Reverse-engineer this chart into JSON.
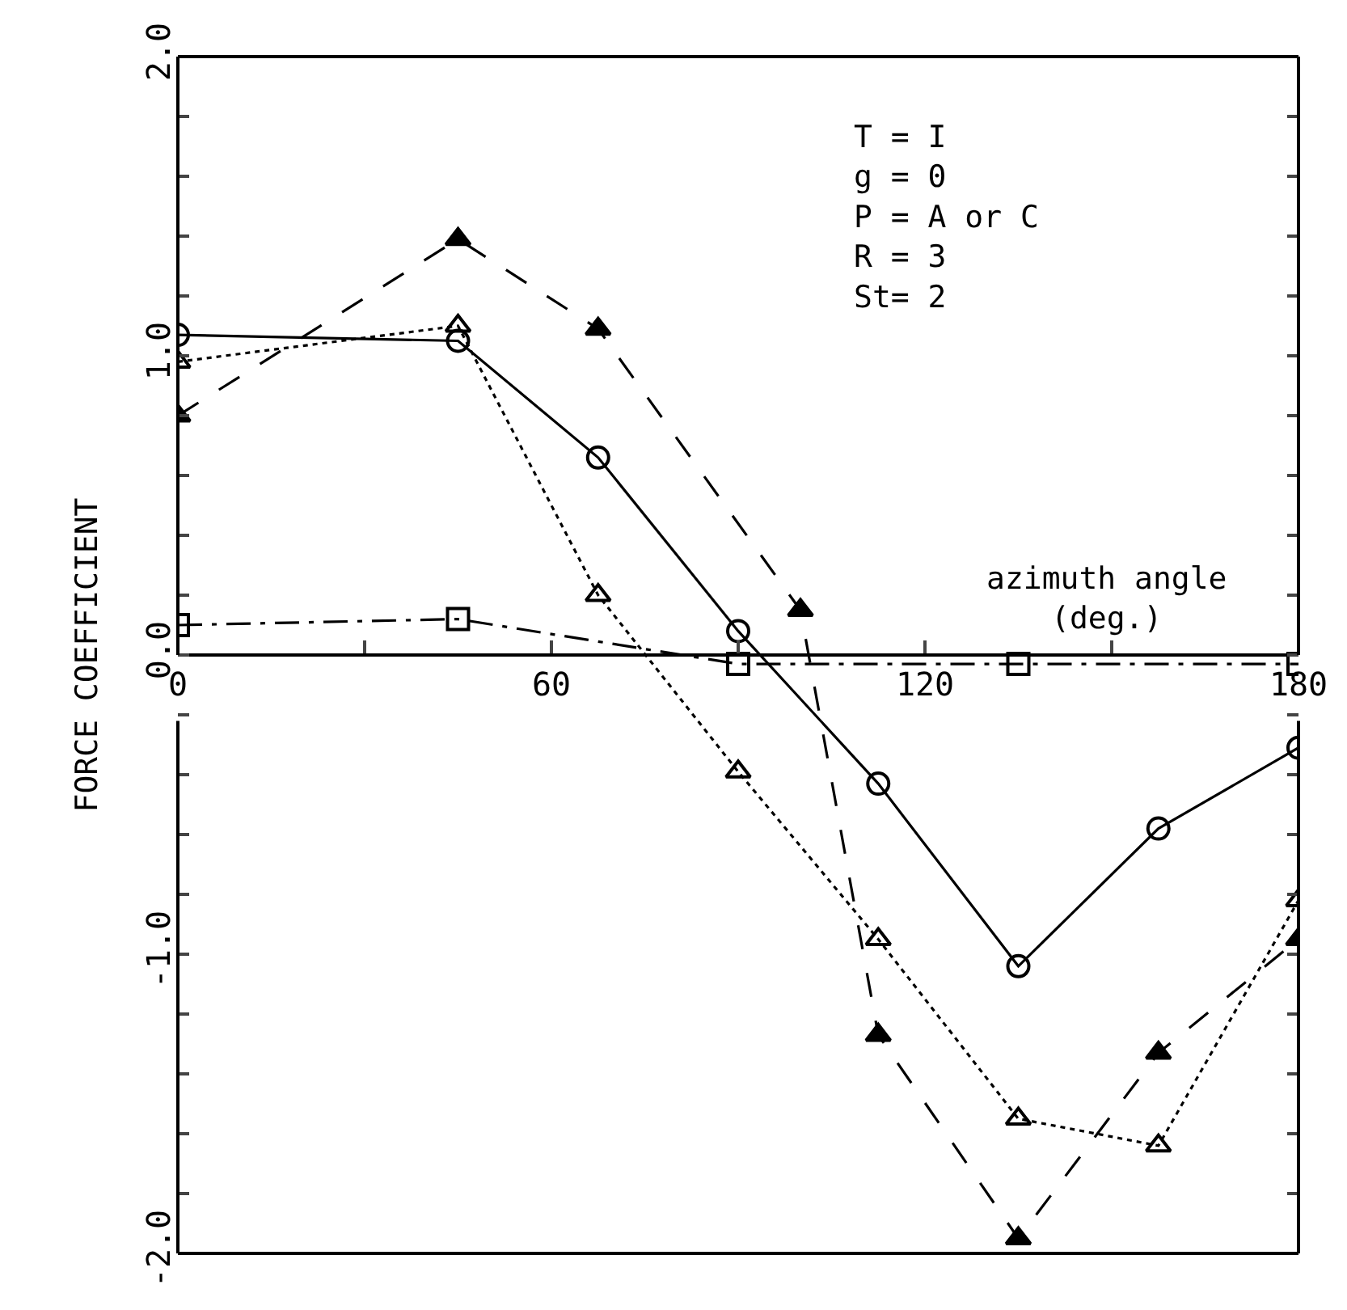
{
  "chart_data": {
    "type": "line",
    "xlabel": "azimuth angle\n(deg.)",
    "ylabel": "FORCE COEFFICIENT",
    "annotations": [
      "T = I\ng = 0\nP = A or C\nR = 3\nSt= 2"
    ],
    "xlim": [
      0,
      180
    ],
    "xticks": [
      0,
      {
        "value": 30,
        "label": null
      },
      60,
      {
        "value": 90,
        "label": null
      },
      120,
      {
        "value": 150,
        "label": null
      },
      180
    ],
    "ylim": [
      -2.0,
      2.0
    ],
    "yticks": [
      {
        "value": -2.0,
        "label": "-2.0"
      },
      {
        "value": -1.8,
        "label": null
      },
      {
        "value": -1.6,
        "label": null
      },
      {
        "value": -1.4,
        "label": null
      },
      {
        "value": -1.2,
        "label": null
      },
      {
        "value": -1.0,
        "label": "-1.0"
      },
      {
        "value": -0.8,
        "label": null
      },
      {
        "value": -0.6,
        "label": null
      },
      {
        "value": -0.4,
        "label": null
      },
      {
        "value": -0.2,
        "label": null
      },
      {
        "value": 0.0,
        "label": "0.0"
      },
      {
        "value": 0.2,
        "label": null
      },
      {
        "value": 0.4,
        "label": null
      },
      {
        "value": 0.6,
        "label": null
      },
      {
        "value": 0.8,
        "label": null
      },
      {
        "value": 1.0,
        "label": "1.0"
      },
      {
        "value": 1.2,
        "label": null
      },
      {
        "value": 1.4,
        "label": null
      },
      {
        "value": 1.6,
        "label": null
      },
      {
        "value": 1.8,
        "label": null
      },
      {
        "value": 2.0,
        "label": "2.0"
      }
    ],
    "series": [
      {
        "color": "#000000",
        "marker": "circle-open",
        "line_style": "solid",
        "x": [
          0,
          45,
          67.5,
          90,
          112.5,
          135,
          157.5,
          180
        ],
        "values": [
          1.07,
          1.05,
          0.66,
          0.08,
          -0.43,
          -1.04,
          -0.58,
          -0.31
        ]
      },
      {
        "color": "#000000",
        "marker": "triangle-open",
        "line_style": "dotted",
        "x": [
          0,
          45,
          67.5,
          90,
          112.5,
          135,
          157.5,
          180
        ],
        "values": [
          0.98,
          1.1,
          0.2,
          -0.39,
          -0.95,
          -1.55,
          -1.64,
          -0.82
        ]
      },
      {
        "color": "#000000",
        "marker": "triangle",
        "line_style": "dashed",
        "x": [
          0,
          45,
          67.5,
          100,
          112.5,
          135,
          157.5,
          180
        ],
        "values": [
          0.8,
          1.39,
          1.09,
          0.15,
          -1.27,
          -1.95,
          -1.33,
          -0.95
        ]
      },
      {
        "color": "#000000",
        "marker": "square-open",
        "line_style": "dashdot",
        "x": [
          0,
          45,
          90,
          135,
          180
        ],
        "values": [
          0.1,
          0.12,
          -0.03,
          -0.03,
          -0.03
        ]
      }
    ]
  }
}
